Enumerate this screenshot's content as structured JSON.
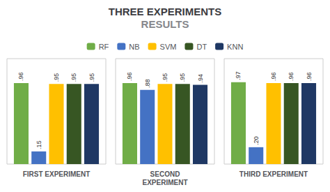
{
  "chart_data": {
    "type": "bar",
    "title": "THREE EXPERIMENTS",
    "subtitle": "RESULTS",
    "categories": [
      "FIRST EXPERIMENT",
      "SECOND\nEXPERIMENT",
      "THIRD EXPERIMENT"
    ],
    "series": [
      {
        "name": "RF",
        "color": "#70ad47",
        "values": [
          0.96,
          0.96,
          0.97
        ],
        "value_labels": [
          ".96",
          ".96",
          ".97"
        ]
      },
      {
        "name": "NB",
        "color": "#4472c4",
        "values": [
          0.15,
          0.88,
          0.2
        ],
        "value_labels": [
          ".15",
          ".88",
          ".20"
        ]
      },
      {
        "name": "SVM",
        "color": "#ffc000",
        "values": [
          0.95,
          0.95,
          0.96
        ],
        "value_labels": [
          ".95",
          ".95",
          ".96"
        ]
      },
      {
        "name": "DT",
        "color": "#375623",
        "values": [
          0.95,
          0.95,
          0.96
        ],
        "value_labels": [
          ".95",
          ".95",
          ".96"
        ]
      },
      {
        "name": "KNN",
        "color": "#1f3864",
        "values": [
          0.95,
          0.94,
          0.96
        ],
        "value_labels": [
          ".95",
          ".94",
          ".96"
        ]
      }
    ],
    "ylim": [
      0,
      1.25
    ],
    "grid": false,
    "legend": "top",
    "data_labels": true,
    "tick_labels": "x"
  }
}
